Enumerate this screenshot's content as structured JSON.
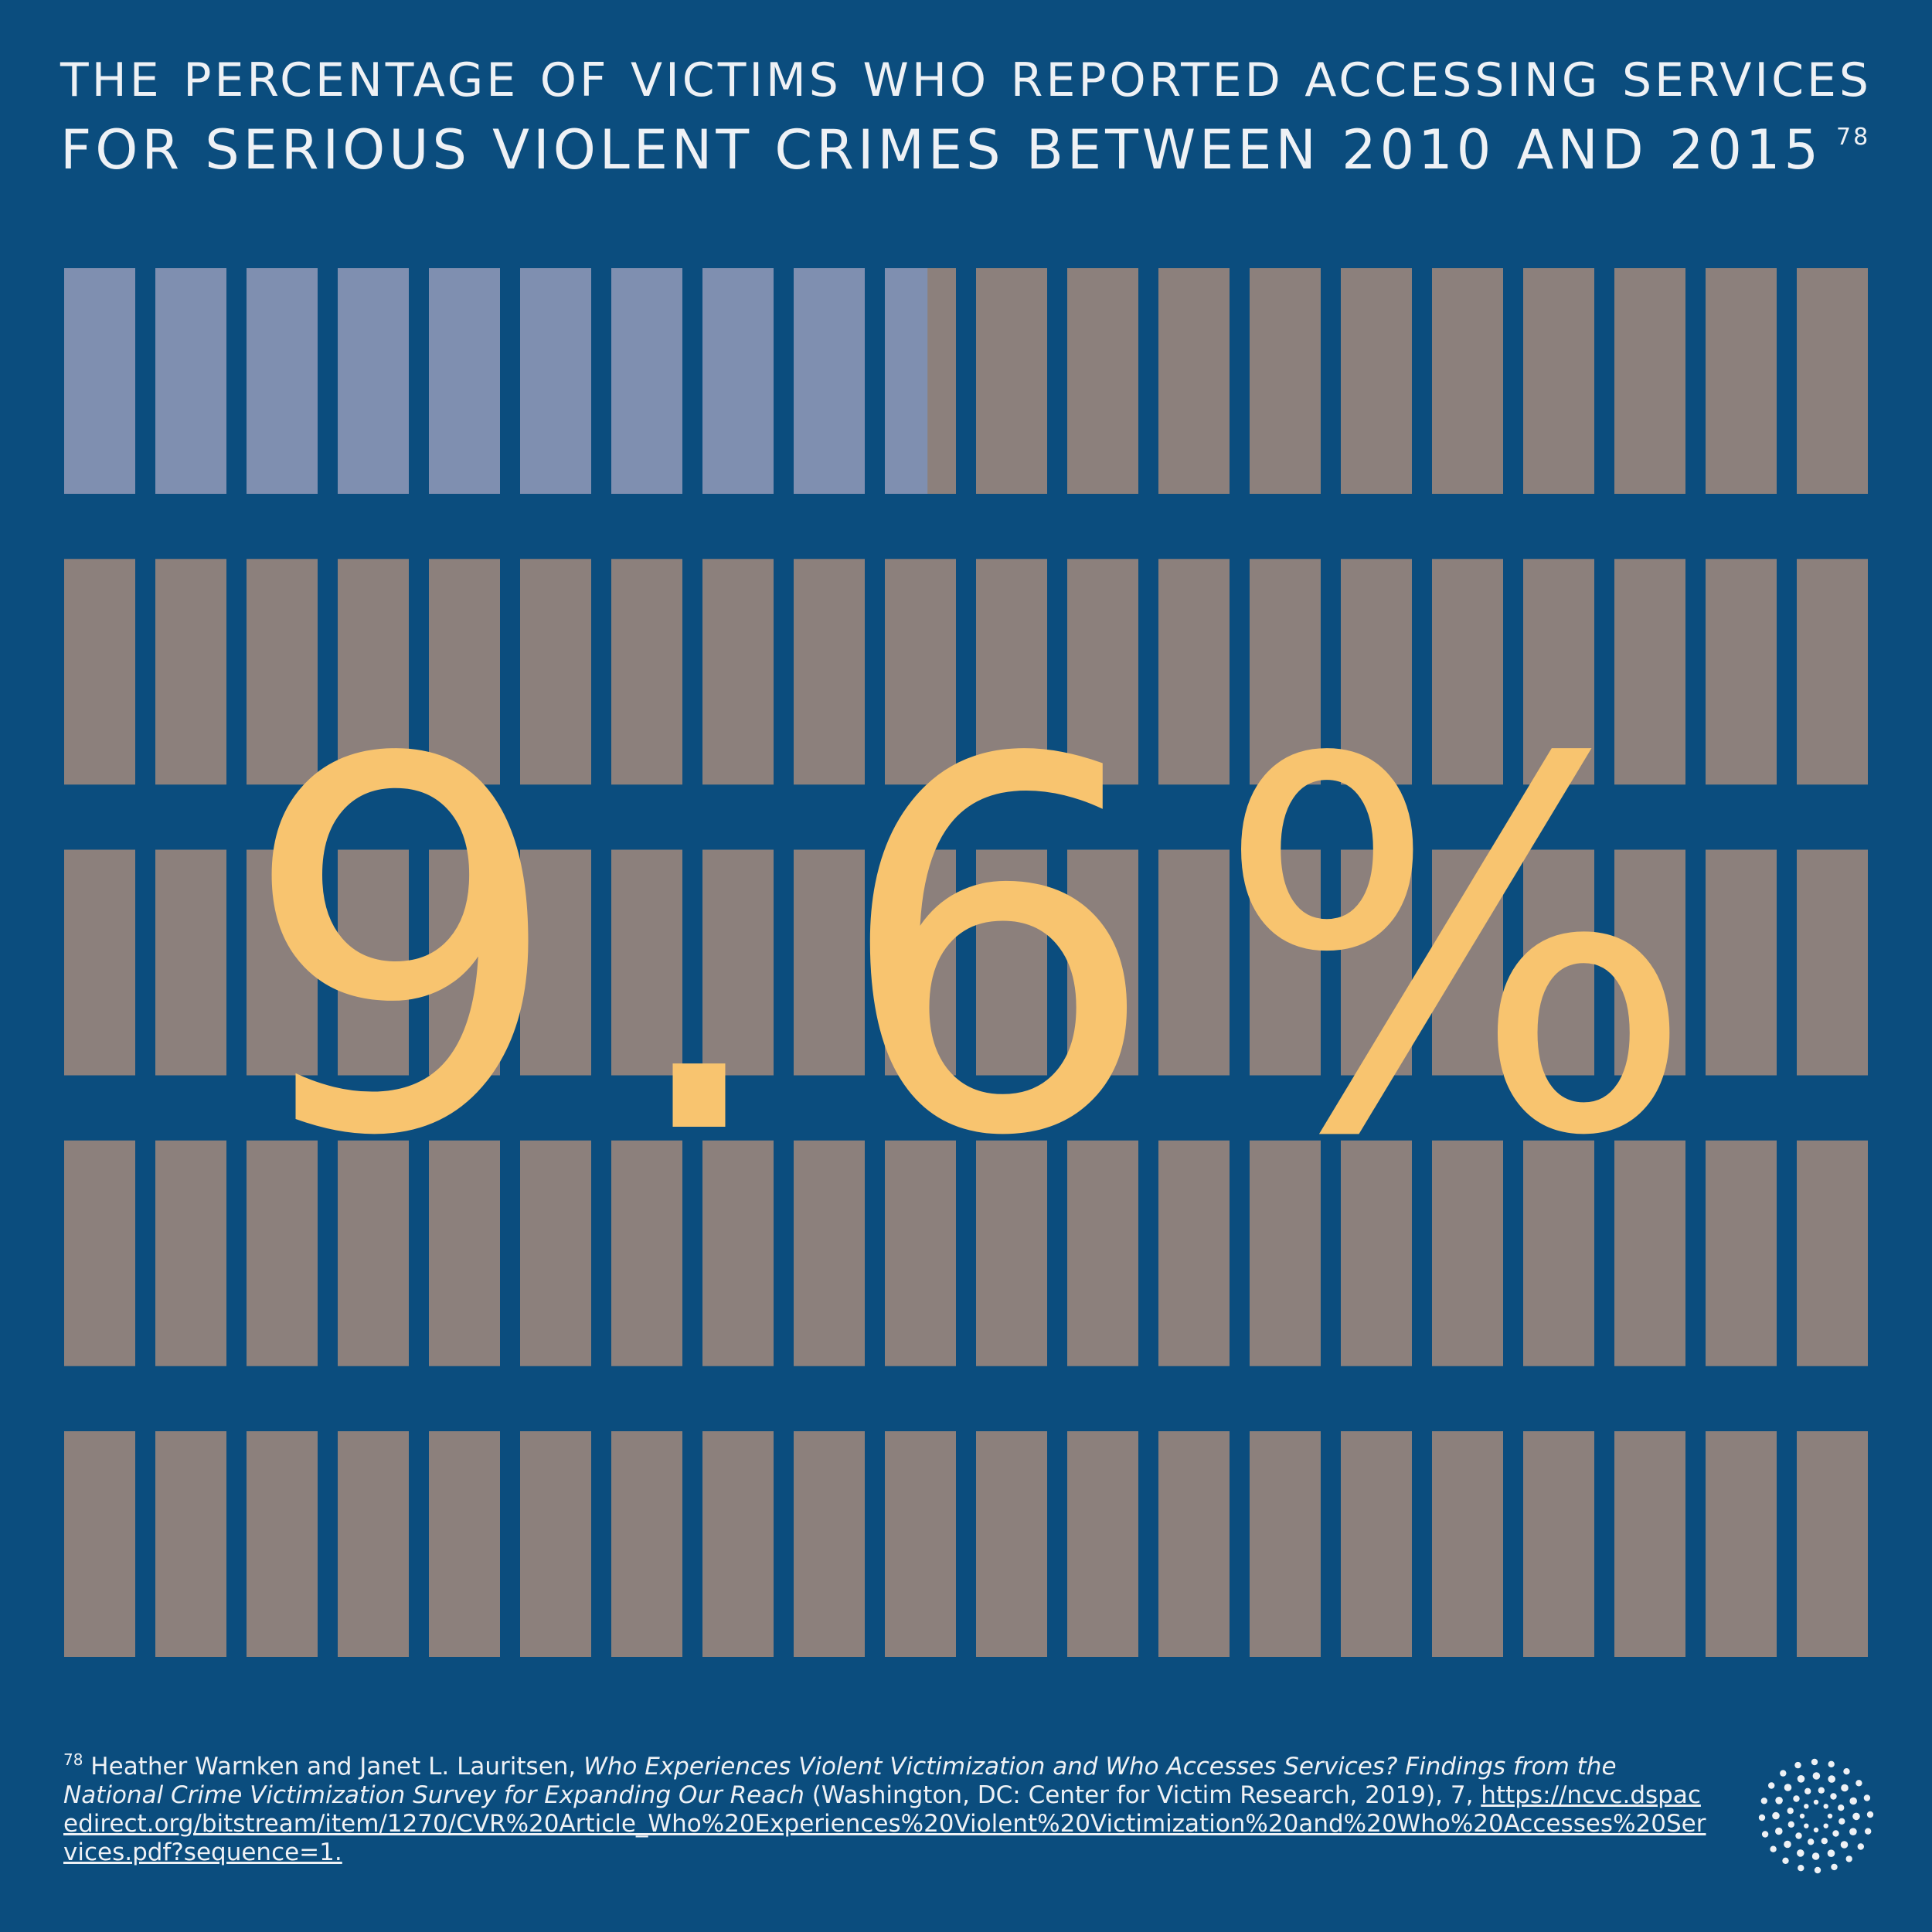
{
  "header": {
    "title_line1": "THE PERCENTAGE OF VICTIMS WHO REPORTED ACCESSING SERVICES",
    "title_line2": "FOR SERIOUS VIOLENT CRIMES BETWEEN 2010 AND 2015",
    "footnote_ref": "78"
  },
  "main": {
    "big_value": "9.6%"
  },
  "footnote": {
    "marker": "78",
    "authors": " Heather Warnken and Janet L. Lauritsen, ",
    "title": "Who Experiences Violent Victimization and Who Accesses Services? Findings from the National Crime Victimization Survey for Expanding Our Reach",
    "details": " (Washington, DC: Center for Victim Research, 2019), 7, ",
    "link": "https://ncvc.dspacedirect.org/bitstream/item/1270/CVR%20Article_Who%20Experiences%20Violent%20Victimization%20and%20Who%20Accesses%20Services.pdf?sequence=1."
  },
  "logo": {
    "icon": "starburst-dots-icon"
  },
  "colors": {
    "background": "#0b4d7e",
    "filled": "#7f8fb0",
    "unfilled": "#8c807c",
    "highlight": "#f8c46f",
    "text": "#eef1f5"
  },
  "chart_data": {
    "type": "waffle",
    "title": "THE PERCENTAGE OF VICTIMS WHO REPORTED ACCESSING SERVICES FOR SERIOUS VIOLENT CRIMES BETWEEN 2010 AND 2015",
    "total_units": 100,
    "rows": 5,
    "columns": 20,
    "value_percent": 9.6,
    "value_label": "9.6%"
  }
}
